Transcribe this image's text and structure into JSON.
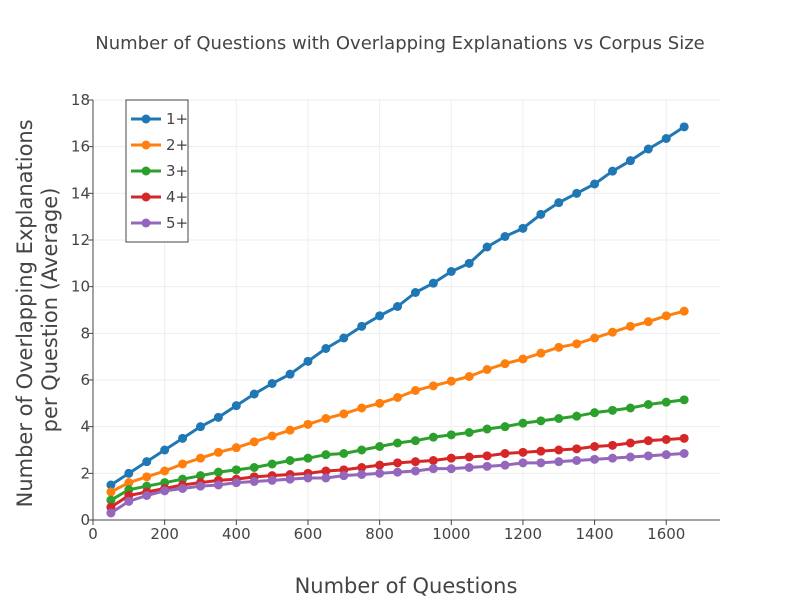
{
  "chart_data": {
    "type": "line",
    "title": "Number of Questions with Overlapping Explanations vs Corpus Size",
    "xlabel": "Number of Questions",
    "ylabel": [
      "Number of Overlapping Explanations",
      "per Question (Average)"
    ],
    "xlim": [
      0,
      1750
    ],
    "ylim": [
      0,
      18
    ],
    "xticks": [
      0,
      200,
      400,
      600,
      800,
      1000,
      1200,
      1400,
      1600
    ],
    "yticks": [
      0,
      2,
      4,
      6,
      8,
      10,
      12,
      14,
      16,
      18
    ],
    "grid": true,
    "legend_position": "top-left",
    "x": [
      50,
      100,
      150,
      200,
      250,
      300,
      350,
      400,
      450,
      500,
      550,
      600,
      650,
      700,
      750,
      800,
      850,
      900,
      950,
      1000,
      1050,
      1100,
      1150,
      1200,
      1250,
      1300,
      1350,
      1400,
      1450,
      1500,
      1550,
      1600,
      1650
    ],
    "series": [
      {
        "name": "1+",
        "color": "#1f77b4",
        "values": [
          1.5,
          2.0,
          2.5,
          3.0,
          3.5,
          4.0,
          4.4,
          4.9,
          5.4,
          5.85,
          6.25,
          6.8,
          7.35,
          7.8,
          8.3,
          8.75,
          9.15,
          9.75,
          10.15,
          10.65,
          11.0,
          11.7,
          12.15,
          12.5,
          13.1,
          13.6,
          14.0,
          14.4,
          14.95,
          15.4,
          15.9,
          16.35,
          16.85
        ]
      },
      {
        "name": "2+",
        "color": "#ff7f0e",
        "values": [
          1.2,
          1.6,
          1.85,
          2.1,
          2.4,
          2.65,
          2.9,
          3.1,
          3.35,
          3.6,
          3.85,
          4.1,
          4.35,
          4.55,
          4.8,
          5.0,
          5.25,
          5.55,
          5.75,
          5.95,
          6.15,
          6.45,
          6.7,
          6.9,
          7.15,
          7.4,
          7.55,
          7.8,
          8.05,
          8.3,
          8.5,
          8.75,
          8.95
        ]
      },
      {
        "name": "3+",
        "color": "#2ca02c",
        "values": [
          0.85,
          1.3,
          1.45,
          1.6,
          1.75,
          1.9,
          2.05,
          2.15,
          2.25,
          2.4,
          2.55,
          2.65,
          2.8,
          2.85,
          3.0,
          3.15,
          3.3,
          3.4,
          3.55,
          3.65,
          3.75,
          3.9,
          4.0,
          4.15,
          4.25,
          4.35,
          4.45,
          4.6,
          4.7,
          4.8,
          4.95,
          5.05,
          5.15
        ]
      },
      {
        "name": "4+",
        "color": "#d62728",
        "values": [
          0.55,
          1.05,
          1.2,
          1.35,
          1.5,
          1.6,
          1.7,
          1.75,
          1.85,
          1.9,
          1.95,
          2.0,
          2.1,
          2.15,
          2.25,
          2.35,
          2.45,
          2.5,
          2.55,
          2.65,
          2.7,
          2.75,
          2.85,
          2.9,
          2.95,
          3.0,
          3.05,
          3.15,
          3.2,
          3.3,
          3.4,
          3.45,
          3.5
        ]
      },
      {
        "name": "5+",
        "color": "#9467bd",
        "values": [
          0.3,
          0.8,
          1.05,
          1.25,
          1.35,
          1.45,
          1.5,
          1.6,
          1.65,
          1.7,
          1.75,
          1.8,
          1.8,
          1.9,
          1.95,
          2.0,
          2.05,
          2.1,
          2.2,
          2.2,
          2.25,
          2.3,
          2.35,
          2.45,
          2.45,
          2.5,
          2.55,
          2.6,
          2.65,
          2.7,
          2.75,
          2.8,
          2.85
        ]
      }
    ]
  }
}
